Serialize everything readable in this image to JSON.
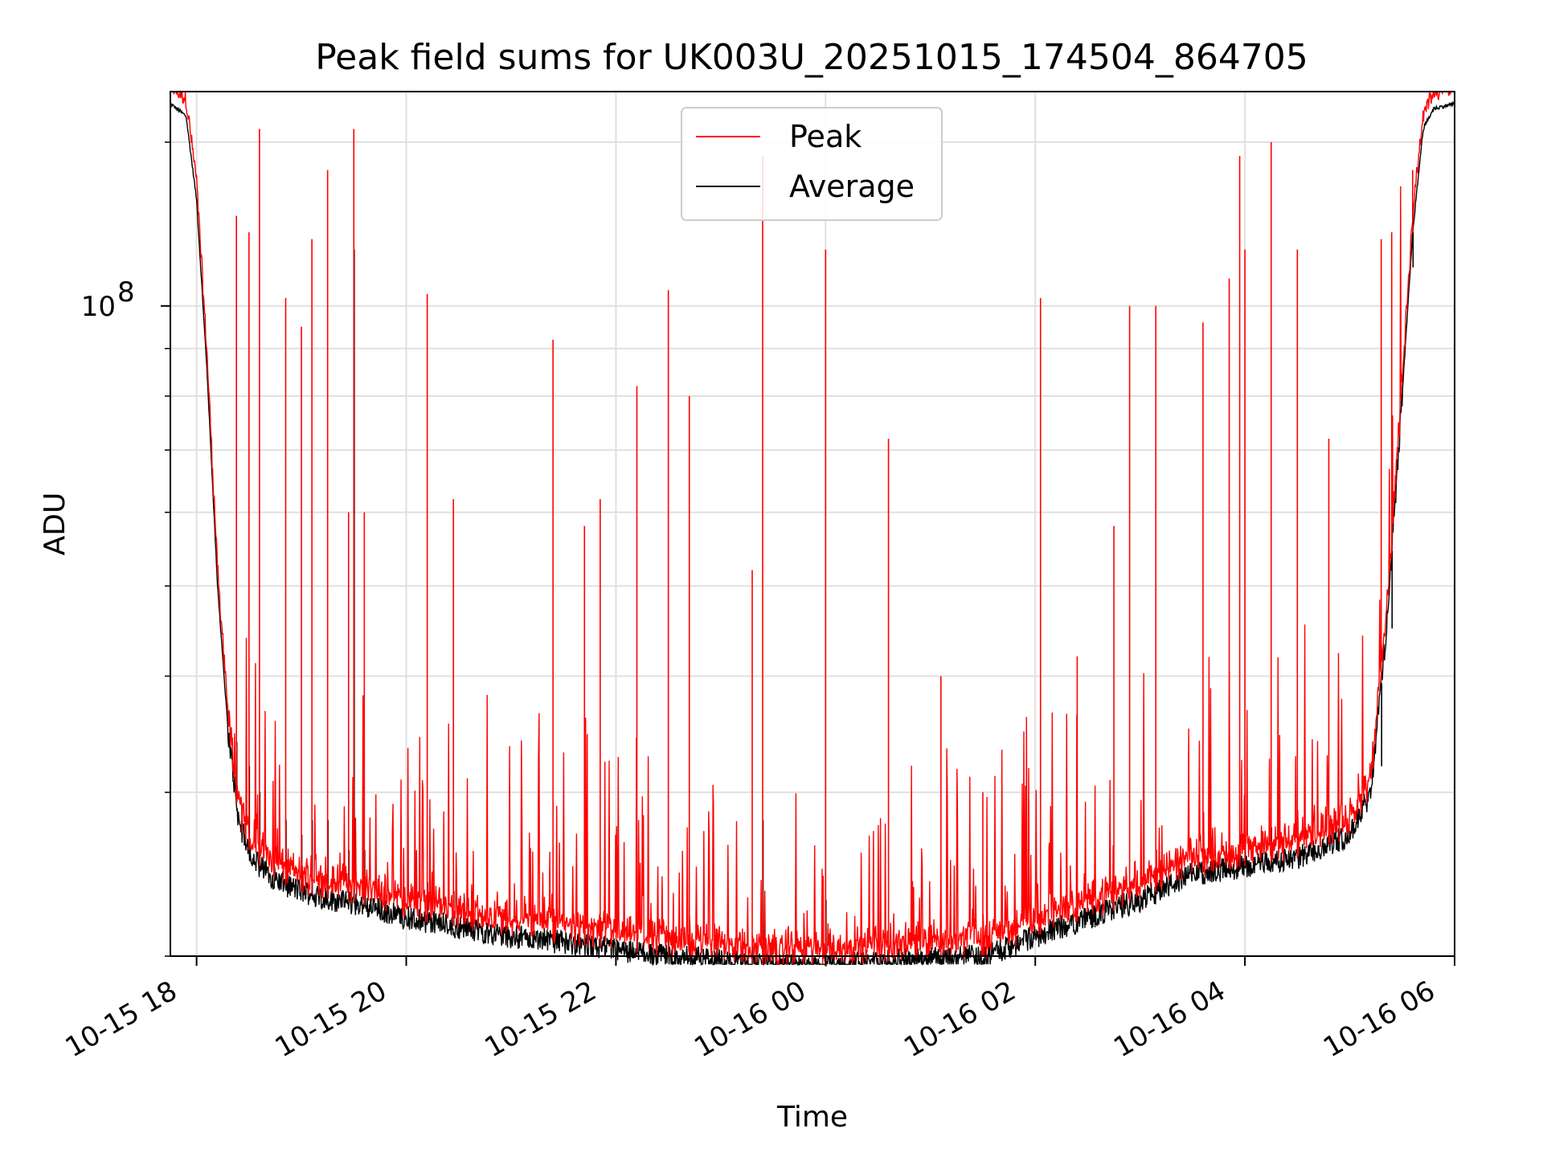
{
  "chart_data": {
    "type": "line",
    "title": "Peak field sums for UK003U_20251015_174504_864705",
    "xlabel": "Time",
    "ylabel": "ADU",
    "yscale": "log",
    "ylim": [
      20000000,
      170000000
    ],
    "xlim_hours": [
      17.75,
      30.0
    ],
    "x_ticks": [
      {
        "hours": 18,
        "label": "10-15 18"
      },
      {
        "hours": 20,
        "label": "10-15 20"
      },
      {
        "hours": 22,
        "label": "10-15 22"
      },
      {
        "hours": 24,
        "label": "10-16 00"
      },
      {
        "hours": 26,
        "label": "10-16 02"
      },
      {
        "hours": 28,
        "label": "10-16 04"
      },
      {
        "hours": 30,
        "label": "10-16 06"
      }
    ],
    "y_major_ticks": [
      {
        "value": 100000000,
        "label_base": "10",
        "label_exp": "8"
      }
    ],
    "y_minor_ticks": [
      20000000,
      30000000,
      40000000,
      50000000,
      60000000,
      70000000,
      80000000,
      90000000,
      150000000
    ],
    "legend": {
      "position": "upper center",
      "entries": [
        {
          "name": "Peak",
          "color": "#ff0000"
        },
        {
          "name": "Average",
          "color": "#000000"
        }
      ]
    },
    "baseline_average": {
      "hours": [
        17.75,
        17.9,
        18.0,
        18.1,
        18.2,
        18.3,
        18.4,
        18.5,
        18.6,
        18.8,
        19.0,
        19.3,
        19.6,
        20.0,
        20.5,
        21.0,
        21.5,
        22.0,
        22.5,
        23.0,
        23.5,
        24.0,
        24.5,
        25.0,
        25.5,
        26.0,
        26.5,
        27.0,
        27.5,
        28.0,
        28.5,
        29.0,
        29.2,
        29.35,
        29.5,
        29.6,
        29.7,
        29.8,
        30.0
      ],
      "values": [
        165000000,
        160000000,
        130000000,
        85000000,
        50000000,
        35000000,
        28000000,
        26000000,
        25000000,
        24000000,
        23500000,
        23000000,
        22700000,
        22000000,
        21500000,
        21000000,
        20700000,
        20300000,
        20000000,
        19800000,
        19500000,
        19500000,
        19700000,
        19900000,
        20000000,
        21000000,
        22000000,
        23000000,
        24500000,
        25000000,
        25500000,
        27000000,
        30000000,
        45000000,
        80000000,
        120000000,
        155000000,
        163000000,
        165000000
      ]
    },
    "peak_spikes": [
      {
        "hours": 18.6,
        "peak": 155000000,
        "average": 30000000
      },
      {
        "hours": 18.38,
        "peak": 125000000,
        "average": 34000000
      },
      {
        "hours": 18.5,
        "peak": 120000000,
        "average": 32000000
      },
      {
        "hours": 18.85,
        "peak": 102000000,
        "average": 28000000
      },
      {
        "hours": 19.0,
        "peak": 95000000,
        "average": 27000000
      },
      {
        "hours": 19.1,
        "peak": 118000000,
        "average": 28000000
      },
      {
        "hours": 19.25,
        "peak": 140000000,
        "average": 28000000
      },
      {
        "hours": 19.45,
        "peak": 60000000,
        "average": 26000000
      },
      {
        "hours": 19.5,
        "peak": 155000000,
        "average": 115000000
      },
      {
        "hours": 19.6,
        "peak": 60000000,
        "average": 26000000
      },
      {
        "hours": 20.2,
        "peak": 103000000,
        "average": 24000000
      },
      {
        "hours": 20.45,
        "peak": 62000000,
        "average": 23500000
      },
      {
        "hours": 21.4,
        "peak": 92000000,
        "average": 22500000
      },
      {
        "hours": 21.7,
        "peak": 58000000,
        "average": 22000000
      },
      {
        "hours": 21.85,
        "peak": 62000000,
        "average": 22000000
      },
      {
        "hours": 22.2,
        "peak": 82000000,
        "average": 21500000
      },
      {
        "hours": 22.5,
        "peak": 104000000,
        "average": 21000000
      },
      {
        "hours": 22.7,
        "peak": 80000000,
        "average": 21000000
      },
      {
        "hours": 23.3,
        "peak": 52000000,
        "average": 20500000
      },
      {
        "hours": 23.4,
        "peak": 145000000,
        "average": 28000000
      },
      {
        "hours": 24.0,
        "peak": 115000000,
        "average": 23000000
      },
      {
        "hours": 24.6,
        "peak": 72000000,
        "average": 20000000
      },
      {
        "hours": 25.1,
        "peak": 40000000,
        "average": 20000000
      },
      {
        "hours": 25.5,
        "peak": 30000000,
        "average": 20500000
      },
      {
        "hours": 26.05,
        "peak": 102000000,
        "average": 21500000
      },
      {
        "hours": 26.4,
        "peak": 42000000,
        "average": 22000000
      },
      {
        "hours": 26.75,
        "peak": 58000000,
        "average": 22500000
      },
      {
        "hours": 26.9,
        "peak": 100000000,
        "average": 23000000
      },
      {
        "hours": 27.15,
        "peak": 100000000,
        "average": 24000000
      },
      {
        "hours": 27.6,
        "peak": 96000000,
        "average": 25000000
      },
      {
        "hours": 27.85,
        "peak": 107000000,
        "average": 26000000
      },
      {
        "hours": 27.95,
        "peak": 145000000,
        "average": 27000000
      },
      {
        "hours": 28.0,
        "peak": 115000000,
        "average": 27000000
      },
      {
        "hours": 28.25,
        "peak": 150000000,
        "average": 27500000
      },
      {
        "hours": 28.5,
        "peak": 115000000,
        "average": 28000000
      },
      {
        "hours": 28.8,
        "peak": 72000000,
        "average": 28000000
      },
      {
        "hours": 29.3,
        "peak": 118000000,
        "average": 32000000
      },
      {
        "hours": 29.4,
        "peak": 120000000,
        "average": 45000000
      },
      {
        "hours": 29.6,
        "peak": 140000000,
        "average": 110000000
      }
    ]
  }
}
